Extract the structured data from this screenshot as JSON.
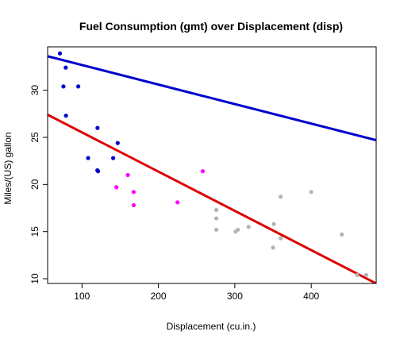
{
  "chart_data": {
    "type": "scatter",
    "title": "Fuel Consumption (gmt) over Displacement (disp)",
    "xlabel": "Displacement (cu.in.)",
    "ylabel": "Miles/(US) gallon",
    "xlim": [
      55,
      485
    ],
    "ylim": [
      9.5,
      34.6
    ],
    "x_ticks": [
      100,
      200,
      300,
      400
    ],
    "y_ticks": [
      10,
      15,
      20,
      25,
      30
    ],
    "grid": false,
    "legend": "none",
    "series": [
      {
        "color": "#0000cc",
        "points": [
          {
            "x": 71.1,
            "y": 33.9
          },
          {
            "x": 75.7,
            "y": 30.4
          },
          {
            "x": 78.7,
            "y": 32.4
          },
          {
            "x": 79.0,
            "y": 27.3
          },
          {
            "x": 95.1,
            "y": 30.4
          },
          {
            "x": 108.0,
            "y": 22.8
          },
          {
            "x": 120.1,
            "y": 21.5
          },
          {
            "x": 120.3,
            "y": 26.0
          },
          {
            "x": 121.0,
            "y": 21.4
          },
          {
            "x": 140.8,
            "y": 22.8
          },
          {
            "x": 146.7,
            "y": 24.4
          }
        ]
      },
      {
        "color": "#ff00ff",
        "points": [
          {
            "x": 145.0,
            "y": 19.7
          },
          {
            "x": 160.0,
            "y": 21.0
          },
          {
            "x": 167.6,
            "y": 19.2
          },
          {
            "x": 167.6,
            "y": 17.8
          },
          {
            "x": 225.0,
            "y": 18.1
          },
          {
            "x": 258.0,
            "y": 21.4
          }
        ]
      },
      {
        "color": "#b3b3b3",
        "points": [
          {
            "x": 275.8,
            "y": 16.4
          },
          {
            "x": 275.8,
            "y": 17.3
          },
          {
            "x": 275.8,
            "y": 15.2
          },
          {
            "x": 301.0,
            "y": 15.0
          },
          {
            "x": 304.0,
            "y": 15.2
          },
          {
            "x": 318.0,
            "y": 15.5
          },
          {
            "x": 350.0,
            "y": 13.3
          },
          {
            "x": 351.0,
            "y": 15.8
          },
          {
            "x": 360.0,
            "y": 18.7
          },
          {
            "x": 360.0,
            "y": 14.3
          },
          {
            "x": 400.0,
            "y": 19.2
          },
          {
            "x": 440.0,
            "y": 14.7
          },
          {
            "x": 460.0,
            "y": 10.4
          },
          {
            "x": 472.0,
            "y": 10.4
          }
        ]
      }
    ],
    "lines": [
      {
        "color": "#0000cc",
        "x": [
          55,
          485
        ],
        "y": [
          33.6,
          24.7
        ]
      },
      {
        "color": "#dd0000",
        "x": [
          55,
          485
        ],
        "y": [
          27.4,
          9.5
        ]
      }
    ]
  }
}
